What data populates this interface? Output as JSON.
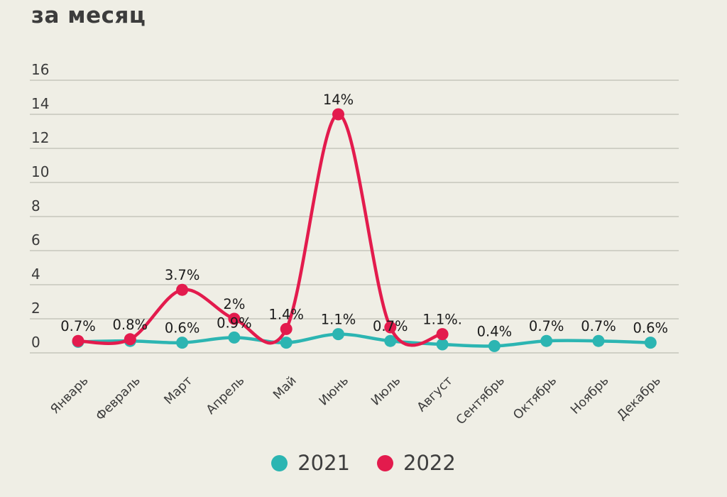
{
  "page": {
    "title": "за месяц"
  },
  "colors": {
    "background": "#efeee5",
    "grid": "#c6c5bc",
    "axis_text": "#3a3a3a",
    "data_label_text": "#1b1b1b",
    "teal": "#2cb5b2",
    "red": "#e31b4d"
  },
  "legend": {
    "items": [
      {
        "label": "2021",
        "color": "#2cb5b2"
      },
      {
        "label": "2022",
        "color": "#e31b4d"
      }
    ]
  },
  "chart_data": {
    "type": "line",
    "title": "за месяц",
    "categories": [
      "Январь",
      "Февраль",
      "Март",
      "Апрель",
      "Май",
      "Июнь",
      "Июль",
      "Август",
      "Сентябрь",
      "Октябрь",
      "Ноябрь",
      "Декабрь"
    ],
    "yticks": [
      0,
      2,
      4,
      6,
      8,
      10,
      12,
      14,
      16
    ],
    "ylim": [
      0,
      16
    ],
    "grid": true,
    "legend_position": "bottom",
    "series": [
      {
        "name": "2021",
        "color": "#2cb5b2",
        "values": [
          0.65,
          0.7,
          0.6,
          0.9,
          0.6,
          1.1,
          0.7,
          0.5,
          0.4,
          0.7,
          0.7,
          0.6
        ],
        "point_labels": [
          null,
          null,
          "0.6%",
          "0.9%",
          null,
          "1.1%",
          "0.7%",
          null,
          "0.4%",
          "0.7%",
          "0.7%",
          "0.6%"
        ]
      },
      {
        "name": "2022",
        "color": "#e31b4d",
        "values": [
          0.7,
          0.8,
          3.7,
          2,
          1.4,
          14,
          1.5,
          1.1,
          null,
          null,
          null,
          null
        ],
        "point_labels": [
          "0.7%",
          "0.8%",
          "3.7%",
          "2%",
          "1.4%",
          "14%",
          null,
          "1.1%.",
          null,
          null,
          null,
          null
        ]
      }
    ]
  }
}
